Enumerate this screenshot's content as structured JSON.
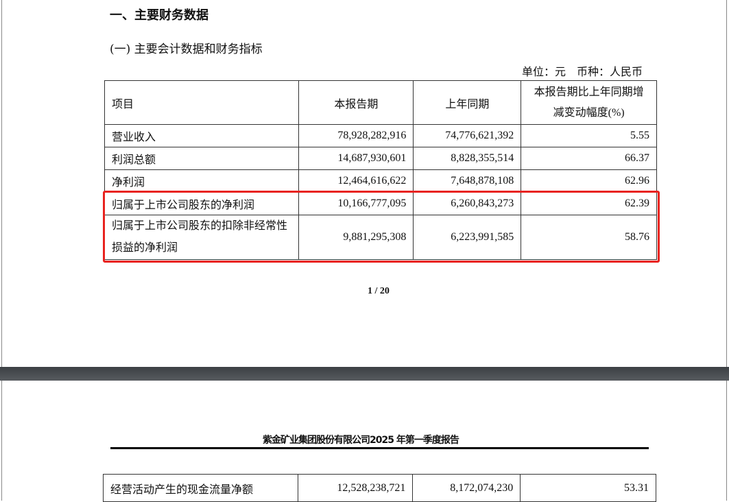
{
  "page1": {
    "section_title": "一、主要财务数据",
    "subsection_title": "(一) 主要会计数据和财务指标",
    "unit_note": "单位：元　币种：人民币",
    "table": {
      "headers": [
        "项目",
        "本报告期",
        "上年同期",
        "本报告期比上年同期增减变动幅度(%)"
      ],
      "rows": [
        [
          "营业收入",
          "78,928,282,916",
          "74,776,621,392",
          "5.55"
        ],
        [
          "利润总额",
          "14,687,930,601",
          "8,828,355,514",
          "66.37"
        ],
        [
          "净利润",
          "12,464,616,622",
          "7,648,878,108",
          "62.96"
        ],
        [
          "归属于上市公司股东的净利润",
          "10,166,777,095",
          "6,260,843,273",
          "62.39"
        ],
        [
          "归属于上市公司股东的扣除非经常性损益的净利润",
          "9,881,295,308",
          "6,223,991,585",
          "58.76"
        ]
      ]
    },
    "highlight_color": "#e8231f",
    "page_number": "1 / 20"
  },
  "page2": {
    "header_title": "紫金矿业集团股份有限公司2025 年第一季度报告",
    "table": {
      "rows": [
        [
          "经营活动产生的现金流量净额",
          "12,528,238,721",
          "8,172,074,230",
          "53.31"
        ]
      ]
    }
  }
}
